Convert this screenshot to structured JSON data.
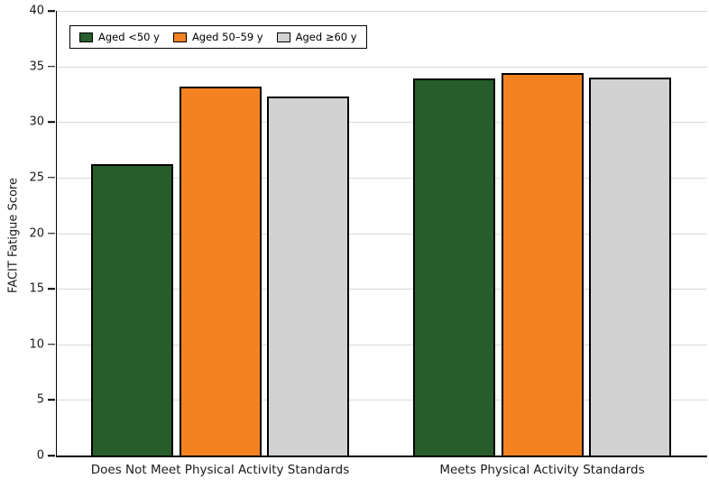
{
  "chart_data": {
    "type": "bar",
    "title": "",
    "xlabel": "",
    "ylabel": "FACIT Fatigue Score",
    "ylim": [
      0,
      40
    ],
    "yticks": [
      0,
      5,
      10,
      15,
      20,
      25,
      30,
      35,
      40
    ],
    "grid": true,
    "legend_position": "top-left-inside",
    "categories": [
      "Does Not Meet Physical Activity Standards",
      "Meets Physical Activity Standards"
    ],
    "series": [
      {
        "name": "Aged <50 y",
        "color": "#275d2b",
        "values": [
          26.2,
          33.9
        ]
      },
      {
        "name": "Aged 50–59 y",
        "color": "#f58220",
        "values": [
          33.2,
          34.4
        ]
      },
      {
        "name": "Aged ≥60 y",
        "color": "#d2d2d2",
        "values": [
          32.3,
          34.0
        ]
      }
    ],
    "colors": {
      "bar_border": "#000000",
      "axis": "#000000",
      "gridline": "#d9d9d9",
      "background": "#ffffff",
      "text": "#1a1a1a"
    }
  }
}
